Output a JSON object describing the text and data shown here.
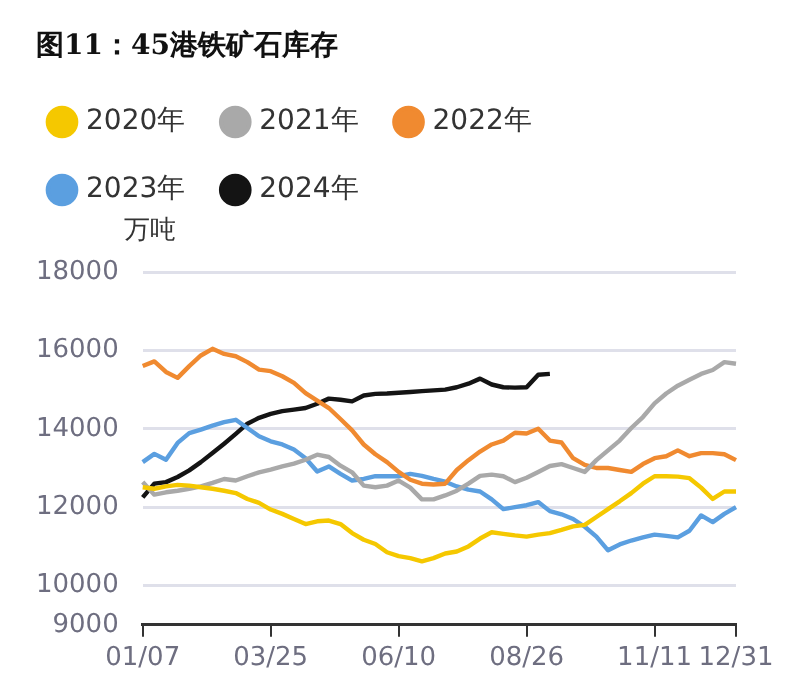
{
  "chart_data": {
    "type": "line",
    "title": "图11：45港铁矿石库存",
    "ylabel": "万吨",
    "categories": [
      "01/07",
      null,
      null,
      null,
      null,
      null,
      null,
      null,
      null,
      null,
      null,
      "03/25",
      null,
      null,
      null,
      null,
      null,
      null,
      null,
      null,
      null,
      null,
      "06/10",
      null,
      null,
      null,
      null,
      null,
      null,
      null,
      null,
      null,
      null,
      "08/26",
      null,
      null,
      null,
      null,
      null,
      null,
      null,
      null,
      null,
      null,
      "11/11",
      null,
      null,
      null,
      null,
      null,
      null,
      "12/31"
    ],
    "series": [
      {
        "name": "2020年",
        "color": "#f5c800",
        "values": [
          12510,
          12470,
          12530,
          12570,
          12550,
          12510,
          12470,
          12420,
          12360,
          12210,
          12110,
          11940,
          11830,
          11700,
          11570,
          11640,
          11660,
          11570,
          11340,
          11170,
          11060,
          10850,
          10750,
          10700,
          10620,
          10700,
          10820,
          10870,
          11000,
          11200,
          11360,
          11320,
          11280,
          11250,
          11300,
          11340,
          11420,
          11510,
          11550,
          11750,
          11950,
          12150,
          12360,
          12600,
          12790,
          12790,
          12780,
          12740,
          12500,
          12210,
          12400,
          12400
        ]
      },
      {
        "name": "2021年",
        "color": "#a9a9a9",
        "values": [
          12640,
          12320,
          12380,
          12420,
          12470,
          12530,
          12620,
          12720,
          12680,
          12790,
          12890,
          12960,
          13040,
          13110,
          13210,
          13340,
          13280,
          13060,
          12890,
          12550,
          12510,
          12550,
          12680,
          12500,
          12200,
          12200,
          12300,
          12420,
          12600,
          12800,
          12830,
          12790,
          12640,
          12750,
          12900,
          13050,
          13100,
          13000,
          12900,
          13200,
          13450,
          13700,
          14020,
          14300,
          14650,
          14900,
          15100,
          15250,
          15400,
          15500,
          15700,
          15660
        ]
      },
      {
        "name": "2022年",
        "color": "#f08a30",
        "values": [
          15600,
          15720,
          15450,
          15300,
          15600,
          15870,
          16040,
          15910,
          15850,
          15700,
          15510,
          15470,
          15340,
          15170,
          14910,
          14720,
          14530,
          14250,
          13960,
          13600,
          13350,
          13150,
          12900,
          12700,
          12600,
          12580,
          12600,
          12950,
          13200,
          13420,
          13600,
          13700,
          13900,
          13880,
          14000,
          13700,
          13650,
          13250,
          13080,
          13000,
          13000,
          12950,
          12900,
          13100,
          13250,
          13300,
          13450,
          13300,
          13380,
          13380,
          13350,
          13200
        ]
      },
      {
        "name": "2023年",
        "color": "#5b9fe0",
        "values": [
          13150,
          13360,
          13210,
          13640,
          13890,
          13980,
          14080,
          14170,
          14230,
          14020,
          13810,
          13680,
          13600,
          13470,
          13250,
          12910,
          13040,
          12850,
          12680,
          12720,
          12790,
          12790,
          12790,
          12850,
          12800,
          12720,
          12650,
          12530,
          12450,
          12400,
          12200,
          11950,
          12000,
          12050,
          12130,
          11900,
          11820,
          11700,
          11500,
          11250,
          10900,
          11050,
          11150,
          11230,
          11300,
          11270,
          11230,
          11400,
          11790,
          11620,
          11830,
          12000
        ]
      },
      {
        "name": "2024年",
        "color": "#141414",
        "values": [
          12250,
          12600,
          12640,
          12770,
          12940,
          13150,
          13380,
          13620,
          13870,
          14130,
          14280,
          14380,
          14450,
          14490,
          14530,
          14640,
          14770,
          14740,
          14700,
          14850,
          14890,
          14900,
          14920,
          14940,
          14960,
          14980,
          15000,
          15060,
          15150,
          15280,
          15130,
          15060,
          15050,
          15060,
          15380,
          15400,
          null,
          null,
          null,
          null,
          null,
          null,
          null,
          null,
          null,
          null,
          null,
          null,
          null,
          null,
          null,
          null
        ]
      }
    ],
    "ylim": [
      9000,
      18000
    ],
    "yticks": [
      9000,
      10000,
      12000,
      14000,
      16000,
      18000
    ],
    "grid": "y",
    "legend": "top",
    "marker": "none",
    "line_style": "solid"
  }
}
